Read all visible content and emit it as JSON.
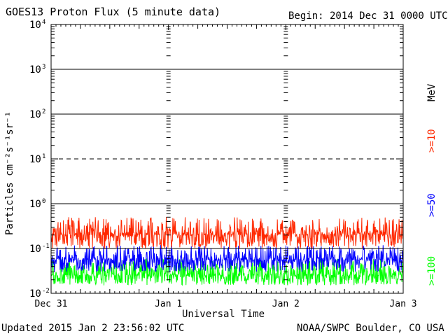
{
  "header": {
    "title": "GOES13 Proton Flux (5 minute data)",
    "begin": "Begin: 2014 Dec 31 0000 UTC"
  },
  "footer": {
    "updated": "Updated 2015 Jan  2 23:56:02 UTC",
    "source": "NOAA/SWPC Boulder, CO USA"
  },
  "legend": {
    "unit": "MeV",
    "items": [
      {
        "label": ">=10",
        "color": "#ff2800"
      },
      {
        "label": ">=50",
        "color": "#0000ff"
      },
      {
        "label": ">=100",
        "color": "#00ff00"
      }
    ]
  },
  "chart_data": {
    "type": "line",
    "title": "GOES13 Proton Flux (5 minute data)",
    "xlabel": "Universal Time",
    "ylabel": "Particles cm⁻²s⁻¹sr⁻¹",
    "yscale": "log",
    "ylim": [
      0.01,
      10000
    ],
    "xlim_days": [
      0,
      3
    ],
    "x_ticks": [
      {
        "day": 0,
        "label": "Dec 31"
      },
      {
        "day": 1,
        "label": "Jan 1"
      },
      {
        "day": 2,
        "label": "Jan 2"
      },
      {
        "day": 3,
        "label": "Jan 3"
      }
    ],
    "y_ticks": [
      {
        "value": 0.01,
        "base": "10",
        "exp": "-2"
      },
      {
        "value": 0.1,
        "base": "10",
        "exp": "-1"
      },
      {
        "value": 1,
        "base": "10",
        "exp": "0"
      },
      {
        "value": 10,
        "base": "10",
        "exp": "1"
      },
      {
        "value": 100,
        "base": "10",
        "exp": "2"
      },
      {
        "value": 1000,
        "base": "10",
        "exp": "3"
      },
      {
        "value": 10000,
        "base": "10",
        "exp": "4"
      }
    ],
    "threshold_line": {
      "value": 10,
      "style": "dashed"
    },
    "series": [
      {
        "name": ">=10 MeV",
        "color": "#ff2800",
        "min": 0.1,
        "max": 0.5,
        "typical": 0.2
      },
      {
        "name": ">=50 MeV",
        "color": "#0000ff",
        "min": 0.03,
        "max": 0.12,
        "typical": 0.055
      },
      {
        "name": ">=100 MeV",
        "color": "#00ff00",
        "min": 0.015,
        "max": 0.06,
        "typical": 0.025
      }
    ]
  }
}
